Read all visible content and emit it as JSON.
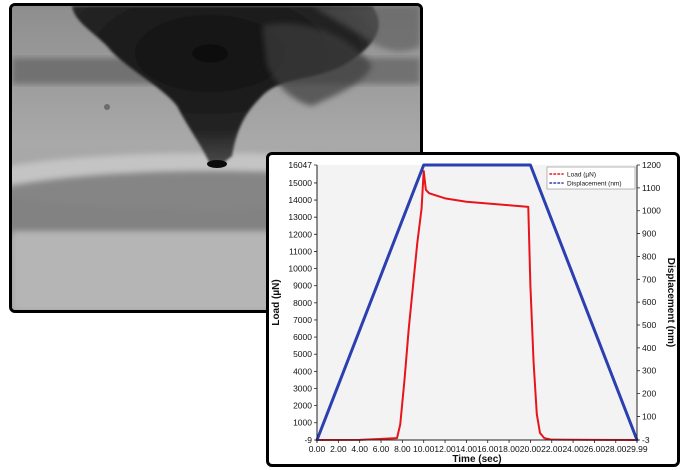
{
  "colors": {
    "load": "#e8141b",
    "displacement": "#2c3fb0",
    "plot_background": "#f3f3f3",
    "frame": "#000000"
  },
  "micrograph": {
    "icon": "tem-image-nanoindenter-tip"
  },
  "chart_data": {
    "type": "line",
    "title": "",
    "xlabel": "Time (sec)",
    "ylabel_left": "Load (µN)",
    "ylabel_right": "Displacement (nm)",
    "xlim": [
      0,
      29.99
    ],
    "ylim_left": [
      -9,
      16047
    ],
    "ylim_right": [
      -3,
      1200
    ],
    "x_ticks": [
      "0.00",
      "2.00",
      "4.00",
      "6.00",
      "8.00",
      "10.00",
      "12.00",
      "14.00",
      "16.00",
      "18.00",
      "20.00",
      "22.00",
      "24.00",
      "26.00",
      "28.00",
      "29.99"
    ],
    "x_tick_values": [
      0,
      2,
      4,
      6,
      8,
      10,
      12,
      14,
      16,
      18,
      20,
      22,
      24,
      26,
      28,
      29.99
    ],
    "y_left_ticks": [
      "-9",
      "1000",
      "2000",
      "3000",
      "4000",
      "5000",
      "6000",
      "7000",
      "8000",
      "9000",
      "10000",
      "11000",
      "12000",
      "13000",
      "14000",
      "15000",
      "16047"
    ],
    "y_left_tick_values": [
      -9,
      1000,
      2000,
      3000,
      4000,
      5000,
      6000,
      7000,
      8000,
      9000,
      10000,
      11000,
      12000,
      13000,
      14000,
      15000,
      16047
    ],
    "y_right_ticks": [
      "-3",
      "100",
      "200",
      "300",
      "400",
      "500",
      "600",
      "700",
      "800",
      "900",
      "1000",
      "1100",
      "1200"
    ],
    "y_right_tick_values": [
      -3,
      100,
      200,
      300,
      400,
      500,
      600,
      700,
      800,
      900,
      1000,
      1100,
      1200
    ],
    "legend_position": "top-right",
    "series": [
      {
        "name": "Load (µN)",
        "axis": "left",
        "color": "#e8141b",
        "x": [
          0,
          4,
          7.5,
          7.8,
          8.2,
          8.6,
          9.0,
          9.4,
          9.8,
          10.0,
          10.2,
          10.5,
          11.0,
          12.0,
          14.0,
          16.0,
          18.0,
          19.8,
          20.0,
          20.3,
          20.6,
          20.9,
          21.3,
          22.0,
          26.0,
          29.99
        ],
        "y": [
          -9,
          0,
          100,
          900,
          3500,
          6500,
          9000,
          11500,
          13500,
          15700,
          14600,
          14400,
          14300,
          14100,
          13900,
          13800,
          13700,
          13600,
          9000,
          4500,
          1500,
          400,
          100,
          10,
          0,
          -9
        ]
      },
      {
        "name": "Displacement (nm)",
        "axis": "right",
        "color": "#2c3fb0",
        "x": [
          0,
          10.0,
          20.0,
          29.99
        ],
        "y": [
          -3,
          1200,
          1200,
          -3
        ]
      }
    ]
  }
}
